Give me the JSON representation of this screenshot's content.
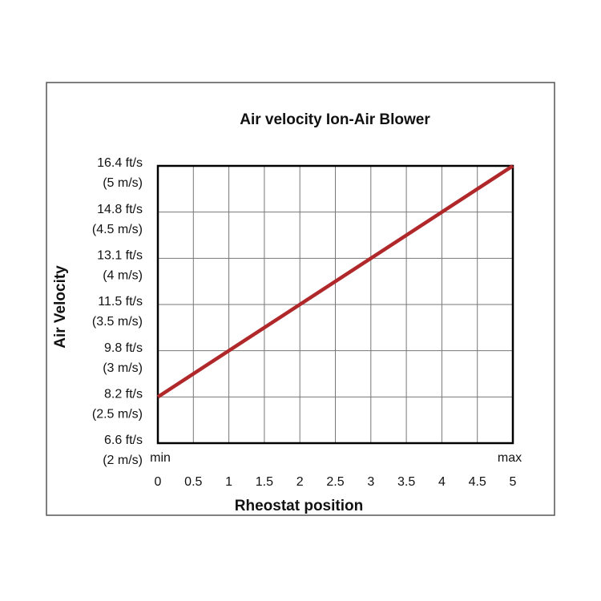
{
  "chart_data": {
    "type": "line",
    "title": "Air velocity Ion-Air Blower",
    "xlabel": "Rheostat position",
    "ylabel": "Air Velocity",
    "annotations": [
      "min",
      "max"
    ],
    "x": [
      0,
      5
    ],
    "series": [
      {
        "name": "Air velocity",
        "color": "#b0282a",
        "values": [
          2.5,
          5
        ]
      }
    ],
    "xlim": [
      0,
      5
    ],
    "xticks": [
      0,
      0.5,
      1,
      1.5,
      2,
      2.5,
      3,
      3.5,
      4,
      4.5,
      5
    ],
    "ylim": [
      2,
      5
    ],
    "yticks": [
      {
        "value": 2,
        "label": [
          "6.6 ft/s",
          "(2 m/s)"
        ]
      },
      {
        "value": 2.5,
        "label": [
          "8.2 ft/s",
          "(2.5 m/s)"
        ]
      },
      {
        "value": 3,
        "label": [
          "9.8 ft/s",
          "(3 m/s)"
        ]
      },
      {
        "value": 3.5,
        "label": [
          "11.5 ft/s",
          "(3.5 m/s)"
        ]
      },
      {
        "value": 4,
        "label": [
          "13.1 ft/s",
          "(4 m/s)"
        ]
      },
      {
        "value": 4.5,
        "label": [
          "14.8 ft/s",
          "(4.5 m/s)"
        ]
      },
      {
        "value": 5,
        "label": [
          "16.4 ft/s",
          "(5 m/s)"
        ]
      }
    ],
    "grid": true
  }
}
